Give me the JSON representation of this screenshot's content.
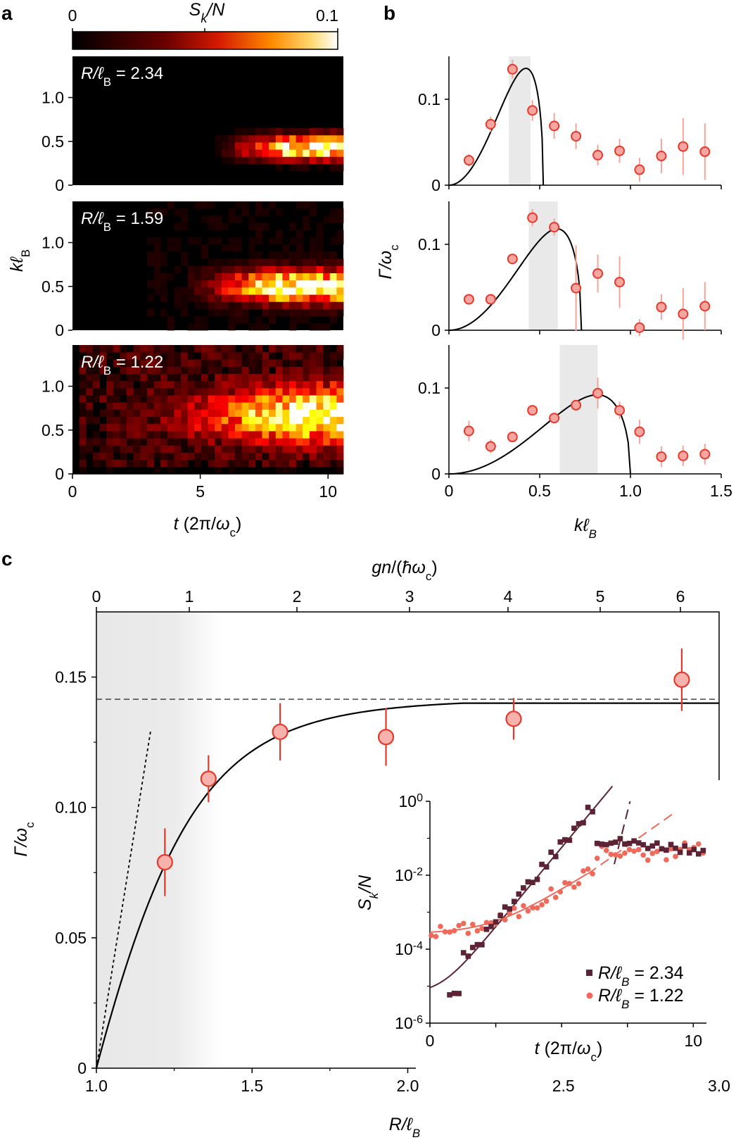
{
  "panel_labels": {
    "a": "a",
    "b": "b",
    "c": "c"
  },
  "colorbar": {
    "label": "S_k/N",
    "min_label": "0",
    "max_label": "0.1"
  },
  "chart_data": [
    {
      "id": "a",
      "type": "heatmap",
      "colormap": "hot",
      "value_range": [
        0,
        0.1
      ],
      "xlabel": "t (2π/ω_c)",
      "ylabel": "kℓ_B",
      "xlim": [
        0,
        10.6
      ],
      "ylim": [
        0,
        1.47
      ],
      "xticks": [
        "0",
        "5",
        "10"
      ],
      "yticks": [
        "0",
        "0.5",
        "1.0"
      ],
      "subplots": [
        {
          "label": "R/ℓ_B = 2.34",
          "band_center": 0.43,
          "band_halfwidth": 0.13,
          "onset_t": 5.2,
          "peak_t": 8.5
        },
        {
          "label": "R/ℓ_B = 1.59",
          "band_center": 0.5,
          "band_halfwidth": 0.17,
          "onset_t": 4.0,
          "peak_t": 8.0
        },
        {
          "label": "R/ℓ_B = 1.22",
          "band_center": 0.68,
          "band_halfwidth": 0.28,
          "onset_t": 2.0,
          "peak_t": 9.0
        }
      ]
    },
    {
      "id": "b",
      "type": "scatter",
      "xlabel": "kℓ_B",
      "ylabel": "Γ/ω_c",
      "xlim": [
        0,
        1.5
      ],
      "ylim": [
        0,
        0.15
      ],
      "xticks": [
        "0",
        "0.5",
        "1.0",
        "1.5"
      ],
      "yticks": [
        "0",
        "0.1"
      ],
      "subplots": [
        {
          "shaded_band": [
            0.33,
            0.45
          ],
          "x": [
            0.11,
            0.23,
            0.35,
            0.46,
            0.58,
            0.7,
            0.82,
            0.94,
            1.05,
            1.17,
            1.29,
            1.41
          ],
          "y": [
            0.029,
            0.071,
            0.135,
            0.087,
            0.069,
            0.057,
            0.035,
            0.04,
            0.018,
            0.034,
            0.045,
            0.039
          ],
          "err": [
            0.007,
            0.009,
            0.011,
            0.012,
            0.015,
            0.015,
            0.012,
            0.014,
            0.014,
            0.02,
            0.033,
            0.033
          ],
          "fit": {
            "k0": 0.52,
            "peak": 0.136
          }
        },
        {
          "shaded_band": [
            0.44,
            0.6
          ],
          "x": [
            0.11,
            0.23,
            0.35,
            0.46,
            0.58,
            0.7,
            0.82,
            0.94,
            1.05,
            1.17,
            1.29,
            1.41
          ],
          "y": [
            0.036,
            0.036,
            0.083,
            0.131,
            0.12,
            0.049,
            0.066,
            0.056,
            0.003,
            0.027,
            0.019,
            0.028
          ],
          "err": [
            0.0,
            0.0,
            0.0,
            0.01,
            0.01,
            0.05,
            0.022,
            0.03,
            0.01,
            0.015,
            0.03,
            0.028
          ],
          "fit": {
            "k0": 0.73,
            "peak": 0.118
          }
        },
        {
          "shaded_band": [
            0.61,
            0.82
          ],
          "x": [
            0.11,
            0.23,
            0.35,
            0.46,
            0.58,
            0.7,
            0.82,
            0.94,
            1.05,
            1.17,
            1.29,
            1.41
          ],
          "y": [
            0.05,
            0.032,
            0.043,
            0.074,
            0.065,
            0.08,
            0.094,
            0.074,
            0.049,
            0.02,
            0.021,
            0.023
          ],
          "err": [
            0.012,
            0.008,
            0.006,
            0.006,
            0.006,
            0.006,
            0.018,
            0.01,
            0.014,
            0.012,
            0.012,
            0.012
          ],
          "fit": {
            "k0": 1.0,
            "peak": 0.092
          }
        }
      ]
    },
    {
      "id": "c",
      "type": "scatter",
      "xlabel": "R/ℓ_B",
      "ylabel": "Γ/ω_c",
      "top_xlabel": "gn/(ħω_c)",
      "xlim": [
        1.0,
        3.0
      ],
      "ylim": [
        0,
        0.175
      ],
      "xticks": [
        "1.0",
        "1.5",
        "2.0",
        "2.5",
        "3.0"
      ],
      "yticks": [
        "0",
        "0.05",
        "0.10",
        "0.15"
      ],
      "top_xticks": [
        "0",
        "1",
        "2",
        "3",
        "4",
        "5",
        "6"
      ],
      "asymptote": 0.1415,
      "points": {
        "x": [
          1.22,
          1.36,
          1.59,
          1.93,
          2.34,
          2.88
        ],
        "y": [
          0.079,
          0.111,
          0.129,
          0.127,
          0.134,
          0.149
        ],
        "err": [
          0.013,
          0.009,
          0.011,
          0.011,
          0.008,
          0.012
        ]
      },
      "inset": {
        "type": "scatter",
        "xlabel": "t (2π/ω_c)",
        "ylabel": "S_k/N",
        "log_y": true,
        "xlim": [
          0,
          10.5
        ],
        "ylim": [
          -6,
          0
        ],
        "xticks": [
          "0",
          "10"
        ],
        "yticks": [
          "10^-6",
          "10^-4",
          "10^-2",
          "10^0"
        ],
        "series": [
          {
            "name": "R/ℓ_B = 2.34",
            "color": "#5b2333",
            "marker": "square"
          },
          {
            "name": "R/ℓ_B = 1.22",
            "color": "#ef6a5a",
            "marker": "circle"
          }
        ]
      }
    }
  ]
}
